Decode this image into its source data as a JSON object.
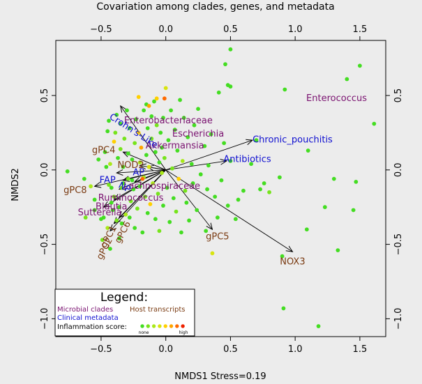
{
  "chart_data": {
    "type": "scatter",
    "title": "Covariation among clades, genes, and metadata",
    "xlabel": "NMDS1 Stress=0.19",
    "ylabel": "NMDS2",
    "xlim": [
      -0.85,
      1.7
    ],
    "ylim": [
      -1.12,
      0.87
    ],
    "x_ticks": [
      -0.5,
      0.0,
      0.5,
      1.0,
      1.5
    ],
    "x_tick_labels": [
      "−0.5",
      "0.0",
      "0.5",
      "1.0",
      "1.5"
    ],
    "y_ticks": [
      -1.0,
      -0.5,
      0.0,
      0.5
    ],
    "y_tick_labels": [
      "−1.0",
      "−0.5",
      "0.0",
      "0.5"
    ],
    "grid": false,
    "legend_position": "bottom-left",
    "origin": [
      0.0,
      0.0
    ],
    "colors": {
      "microbial": "#7a1270",
      "clinical": "#1010d0",
      "host": "#7a3b12",
      "scale": [
        "#44dd22",
        "#77e41c",
        "#a9e918",
        "#d8e410",
        "#ffd000",
        "#ffa500",
        "#ff6a00",
        "#ee2200"
      ]
    },
    "vectors": [
      {
        "label": "Enterococcus",
        "group": "microbial",
        "tip": [
          0.0,
          0.0
        ],
        "text": [
          1.32,
          0.48
        ]
      },
      {
        "label": "Enterobacteriaceae",
        "group": "microbial",
        "tip": [
          0.0,
          0.0
        ],
        "text": [
          0.02,
          0.33
        ]
      },
      {
        "label": "Escherichia",
        "group": "microbial",
        "tip": [
          0.0,
          0.0
        ],
        "text": [
          0.25,
          0.24
        ]
      },
      {
        "label": "Akkermansia",
        "group": "microbial",
        "tip": [
          0.0,
          0.0
        ],
        "text": [
          0.07,
          0.16
        ]
      },
      {
        "label": "Lachnospiraceae",
        "group": "microbial",
        "tip": [
          -0.33,
          -0.07
        ],
        "text": [
          -0.03,
          -0.11
        ]
      },
      {
        "label": "Ruminococcus",
        "group": "microbial",
        "tip": [
          -0.36,
          -0.13
        ],
        "text": [
          -0.27,
          -0.19
        ]
      },
      {
        "label": "Blautia",
        "group": "microbial",
        "tip": [
          -0.4,
          -0.2
        ],
        "text": [
          -0.42,
          -0.25
        ]
      },
      {
        "label": "Sutterella",
        "group": "microbial",
        "tip": [
          -0.48,
          -0.25
        ],
        "text": [
          -0.51,
          -0.29
        ]
      },
      {
        "label": "Chronic_pouchitis",
        "group": "clinical",
        "tip": [
          0.67,
          0.2
        ],
        "text": [
          0.98,
          0.2
        ]
      },
      {
        "label": "Antibiotics",
        "group": "clinical",
        "tip": [
          0.47,
          0.06
        ],
        "text": [
          0.63,
          0.07
        ]
      },
      {
        "label": "Crohn's-Like",
        "group": "clinical",
        "tip": [
          -0.35,
          0.43
        ],
        "text": [
          -0.25,
          0.26
        ],
        "angle": 33
      },
      {
        "label": "AP",
        "group": "clinical",
        "tip": [
          -0.14,
          0.02
        ],
        "text": [
          -0.21,
          -0.02
        ]
      },
      {
        "label": "FAP",
        "group": "clinical",
        "tip": [
          -0.38,
          -0.02
        ],
        "text": [
          -0.45,
          -0.07
        ]
      },
      {
        "label": "NP",
        "group": "clinical",
        "tip": [
          -0.24,
          -0.08
        ],
        "text": [
          -0.32,
          -0.12
        ],
        "angle": 28
      },
      {
        "label": "NOX3",
        "group": "host",
        "tip": [
          0.98,
          -0.55
        ],
        "text": [
          0.98,
          -0.62
        ]
      },
      {
        "label": "gPC4",
        "group": "host",
        "tip": [
          -0.33,
          0.12
        ],
        "text": [
          -0.48,
          0.13
        ]
      },
      {
        "label": "NOD2",
        "group": "host",
        "tip": [
          -0.2,
          0.03
        ],
        "text": [
          -0.27,
          0.03
        ]
      },
      {
        "label": "gPC8",
        "group": "host",
        "tip": [
          -0.55,
          -0.11
        ],
        "text": [
          -0.7,
          -0.14
        ]
      },
      {
        "label": "gPC5",
        "group": "host",
        "tip": [
          0.36,
          -0.4
        ],
        "text": [
          0.4,
          -0.45
        ]
      },
      {
        "label": "gPC6",
        "group": "host",
        "tip": [
          -0.36,
          -0.32
        ],
        "text": [
          -0.33,
          -0.42
        ],
        "angle": -62
      },
      {
        "label": "gPC1",
        "group": "host",
        "tip": [
          -0.4,
          -0.36
        ],
        "text": [
          -0.44,
          -0.45
        ],
        "angle": -62
      },
      {
        "label": "gPC2",
        "group": "host",
        "tip": [
          -0.43,
          -0.41
        ],
        "text": [
          -0.47,
          -0.53
        ],
        "angle": -62
      }
    ],
    "points": [
      {
        "x": -0.76,
        "y": -0.01,
        "c": 0
      },
      {
        "x": -0.63,
        "y": -0.06,
        "c": 0
      },
      {
        "x": -0.62,
        "y": -0.32,
        "c": 1
      },
      {
        "x": -0.55,
        "y": -0.2,
        "c": 0
      },
      {
        "x": -0.58,
        "y": -0.11,
        "c": 2
      },
      {
        "x": -0.52,
        "y": 0.07,
        "c": 0
      },
      {
        "x": -0.5,
        "y": -0.33,
        "c": 0
      },
      {
        "x": -0.49,
        "y": -0.47,
        "c": 1
      },
      {
        "x": -0.48,
        "y": -0.32,
        "c": 0
      },
      {
        "x": -0.47,
        "y": 0.12,
        "c": 0
      },
      {
        "x": -0.46,
        "y": 0.02,
        "c": 0
      },
      {
        "x": -0.45,
        "y": 0.26,
        "c": 0
      },
      {
        "x": -0.45,
        "y": -0.39,
        "c": 2
      },
      {
        "x": -0.44,
        "y": 0.33,
        "c": 0
      },
      {
        "x": -0.43,
        "y": -0.53,
        "c": 0
      },
      {
        "x": -0.43,
        "y": 0.04,
        "c": 2
      },
      {
        "x": -0.42,
        "y": -0.12,
        "c": 0
      },
      {
        "x": -0.42,
        "y": -0.22,
        "c": 0
      },
      {
        "x": -0.41,
        "y": -0.27,
        "c": 0
      },
      {
        "x": -0.4,
        "y": 0.19,
        "c": 4
      },
      {
        "x": -0.4,
        "y": -0.18,
        "c": 1
      },
      {
        "x": -0.39,
        "y": 0.25,
        "c": 1
      },
      {
        "x": -0.38,
        "y": 0.37,
        "c": 0
      },
      {
        "x": -0.38,
        "y": -0.34,
        "c": 1
      },
      {
        "x": -0.37,
        "y": 0.08,
        "c": 0
      },
      {
        "x": -0.36,
        "y": -0.25,
        "c": 0
      },
      {
        "x": -0.36,
        "y": -0.46,
        "c": 0
      },
      {
        "x": -0.35,
        "y": 0.14,
        "c": 1
      },
      {
        "x": -0.35,
        "y": 0.31,
        "c": 0
      },
      {
        "x": -0.34,
        "y": -0.12,
        "c": 1
      },
      {
        "x": -0.33,
        "y": 0.02,
        "c": 0
      },
      {
        "x": -0.33,
        "y": -0.09,
        "c": 0
      },
      {
        "x": -0.32,
        "y": 0.21,
        "c": 1
      },
      {
        "x": -0.31,
        "y": -0.3,
        "c": 2
      },
      {
        "x": -0.3,
        "y": 0.4,
        "c": 0
      },
      {
        "x": -0.29,
        "y": -0.06,
        "c": 1
      },
      {
        "x": -0.29,
        "y": 0.11,
        "c": 0
      },
      {
        "x": -0.28,
        "y": -0.32,
        "c": 0
      },
      {
        "x": -0.28,
        "y": 0.28,
        "c": 0
      },
      {
        "x": -0.27,
        "y": -0.21,
        "c": 1
      },
      {
        "x": -0.26,
        "y": 0.07,
        "c": 0
      },
      {
        "x": -0.25,
        "y": -0.13,
        "c": 0
      },
      {
        "x": -0.24,
        "y": 0.18,
        "c": 1
      },
      {
        "x": -0.24,
        "y": -0.39,
        "c": 0
      },
      {
        "x": -0.23,
        "y": 0.34,
        "c": 0
      },
      {
        "x": -0.22,
        "y": -0.26,
        "c": 1
      },
      {
        "x": -0.21,
        "y": 0.25,
        "c": 4
      },
      {
        "x": -0.2,
        "y": 0.05,
        "c": 2
      },
      {
        "x": -0.2,
        "y": -0.11,
        "c": 0
      },
      {
        "x": -0.19,
        "y": 0.15,
        "c": 5
      },
      {
        "x": -0.18,
        "y": -0.42,
        "c": 0
      },
      {
        "x": -0.17,
        "y": 0.4,
        "c": 0
      },
      {
        "x": -0.17,
        "y": -0.05,
        "c": 2
      },
      {
        "x": -0.16,
        "y": -0.18,
        "c": 1
      },
      {
        "x": -0.15,
        "y": 0.1,
        "c": 0
      },
      {
        "x": -0.14,
        "y": 0.28,
        "c": 0
      },
      {
        "x": -0.14,
        "y": -0.29,
        "c": 0
      },
      {
        "x": -0.13,
        "y": 0.02,
        "c": 3
      },
      {
        "x": -0.12,
        "y": -0.23,
        "c": 4
      },
      {
        "x": -0.11,
        "y": 0.36,
        "c": 0
      },
      {
        "x": -0.11,
        "y": 0.21,
        "c": 1
      },
      {
        "x": -0.1,
        "y": -0.09,
        "c": 2
      },
      {
        "x": -0.09,
        "y": 0.46,
        "c": 0
      },
      {
        "x": -0.08,
        "y": 0.12,
        "c": 0
      },
      {
        "x": -0.08,
        "y": -0.33,
        "c": 0
      },
      {
        "x": -0.07,
        "y": 0.3,
        "c": 1
      },
      {
        "x": -0.06,
        "y": -0.16,
        "c": 1
      },
      {
        "x": -0.05,
        "y": 0.05,
        "c": 0
      },
      {
        "x": -0.05,
        "y": -0.41,
        "c": 1
      },
      {
        "x": -0.04,
        "y": 0.25,
        "c": 0
      },
      {
        "x": -0.03,
        "y": -0.02,
        "c": 2
      },
      {
        "x": -0.03,
        "y": 0.15,
        "c": 0
      },
      {
        "x": -0.02,
        "y": 0.35,
        "c": 0
      },
      {
        "x": -0.02,
        "y": -0.24,
        "c": 0
      },
      {
        "x": -0.01,
        "y": 0.48,
        "c": 6
      },
      {
        "x": -0.01,
        "y": 0.08,
        "c": 1
      },
      {
        "x": -0.07,
        "y": 0.48,
        "c": 4
      },
      {
        "x": -0.15,
        "y": 0.44,
        "c": 0
      },
      {
        "x": -0.18,
        "y": -0.06,
        "c": 6
      },
      {
        "x": -0.26,
        "y": -0.07,
        "c": 0
      },
      {
        "x": -0.34,
        "y": -0.36,
        "c": 0
      },
      {
        "x": -0.55,
        "y": -0.27,
        "c": 0
      },
      {
        "x": -0.44,
        "y": -0.1,
        "c": 1
      },
      {
        "x": -0.21,
        "y": 0.49,
        "c": 4
      },
      {
        "x": -0.13,
        "y": 0.43,
        "c": 5
      },
      {
        "x": 0.0,
        "y": 0.55,
        "c": 3
      },
      {
        "x": 0.01,
        "y": -0.12,
        "c": 0
      },
      {
        "x": 0.02,
        "y": 0.2,
        "c": 0
      },
      {
        "x": 0.03,
        "y": -0.35,
        "c": 0
      },
      {
        "x": 0.04,
        "y": 0.4,
        "c": 0
      },
      {
        "x": 0.05,
        "y": 0.01,
        "c": 1
      },
      {
        "x": 0.06,
        "y": -0.19,
        "c": 0
      },
      {
        "x": 0.07,
        "y": 0.27,
        "c": 0
      },
      {
        "x": 0.08,
        "y": -0.28,
        "c": 1
      },
      {
        "x": 0.09,
        "y": 0.13,
        "c": 0
      },
      {
        "x": 0.1,
        "y": -0.06,
        "c": 4
      },
      {
        "x": 0.11,
        "y": 0.47,
        "c": 0
      },
      {
        "x": 0.12,
        "y": -0.42,
        "c": 0
      },
      {
        "x": 0.13,
        "y": 0.06,
        "c": 2
      },
      {
        "x": 0.14,
        "y": 0.35,
        "c": 0
      },
      {
        "x": 0.15,
        "y": -0.14,
        "c": 1
      },
      {
        "x": 0.16,
        "y": -0.22,
        "c": 0
      },
      {
        "x": 0.17,
        "y": 0.22,
        "c": 0
      },
      {
        "x": 0.18,
        "y": -0.34,
        "c": 0
      },
      {
        "x": 0.2,
        "y": 0.04,
        "c": 0
      },
      {
        "x": 0.21,
        "y": -0.09,
        "c": 0
      },
      {
        "x": 0.22,
        "y": 0.3,
        "c": 0
      },
      {
        "x": 0.24,
        "y": -0.27,
        "c": 0
      },
      {
        "x": 0.25,
        "y": 0.41,
        "c": 0
      },
      {
        "x": 0.27,
        "y": -0.03,
        "c": 0
      },
      {
        "x": 0.3,
        "y": 0.16,
        "c": 0
      },
      {
        "x": 0.31,
        "y": -0.41,
        "c": 0
      },
      {
        "x": 0.33,
        "y": 0.03,
        "c": 0
      },
      {
        "x": 0.35,
        "y": 0.24,
        "c": 0
      },
      {
        "x": 0.38,
        "y": -0.18,
        "c": 0
      },
      {
        "x": 0.41,
        "y": 0.52,
        "c": 0
      },
      {
        "x": 0.43,
        "y": -0.07,
        "c": 0
      },
      {
        "x": 0.45,
        "y": 0.18,
        "c": 0
      },
      {
        "x": 0.46,
        "y": 0.71,
        "c": 0
      },
      {
        "x": 0.48,
        "y": 0.57,
        "c": 0
      },
      {
        "x": 0.5,
        "y": 0.81,
        "c": 0
      },
      {
        "x": 0.5,
        "y": 0.56,
        "c": 0
      },
      {
        "x": 0.32,
        "y": -0.13,
        "c": 0
      },
      {
        "x": 0.36,
        "y": -0.56,
        "c": 3
      },
      {
        "x": 0.4,
        "y": -0.32,
        "c": 0
      },
      {
        "x": 0.48,
        "y": -0.24,
        "c": 0
      },
      {
        "x": 0.5,
        "y": 0.06,
        "c": 0
      },
      {
        "x": 0.54,
        "y": -0.33,
        "c": 0
      },
      {
        "x": 0.56,
        "y": -0.2,
        "c": 0
      },
      {
        "x": 0.6,
        "y": -0.14,
        "c": 0
      },
      {
        "x": 0.66,
        "y": 0.04,
        "c": 0
      },
      {
        "x": 0.7,
        "y": 0.2,
        "c": 0
      },
      {
        "x": 0.73,
        "y": -0.13,
        "c": 0
      },
      {
        "x": 0.76,
        "y": -0.09,
        "c": 0
      },
      {
        "x": 0.8,
        "y": -0.15,
        "c": 1
      },
      {
        "x": 0.88,
        "y": -0.05,
        "c": 0
      },
      {
        "x": 0.9,
        "y": -0.58,
        "c": 0
      },
      {
        "x": 0.91,
        "y": -0.93,
        "c": 0
      },
      {
        "x": 0.92,
        "y": 0.54,
        "c": 0
      },
      {
        "x": 1.09,
        "y": -0.4,
        "c": 0
      },
      {
        "x": 1.18,
        "y": -1.05,
        "c": 0
      },
      {
        "x": 1.23,
        "y": -0.25,
        "c": 0
      },
      {
        "x": 1.3,
        "y": -0.06,
        "c": 0
      },
      {
        "x": 1.33,
        "y": -0.54,
        "c": 0
      },
      {
        "x": 1.4,
        "y": 0.61,
        "c": 0
      },
      {
        "x": 1.45,
        "y": -0.27,
        "c": 0
      },
      {
        "x": 1.47,
        "y": -0.08,
        "c": 0
      },
      {
        "x": 1.5,
        "y": 0.7,
        "c": 0
      },
      {
        "x": 1.61,
        "y": 0.31,
        "c": 0
      },
      {
        "x": 1.1,
        "y": 0.13,
        "c": 0
      }
    ],
    "legend": {
      "title": "Legend:",
      "microbial_label": "Microbial clades",
      "host_label": "Host transcripts",
      "clinical_label": "Clinical metadata",
      "inflammation_label": "Inflammation score:",
      "low_label": "none",
      "high_label": "high"
    }
  }
}
